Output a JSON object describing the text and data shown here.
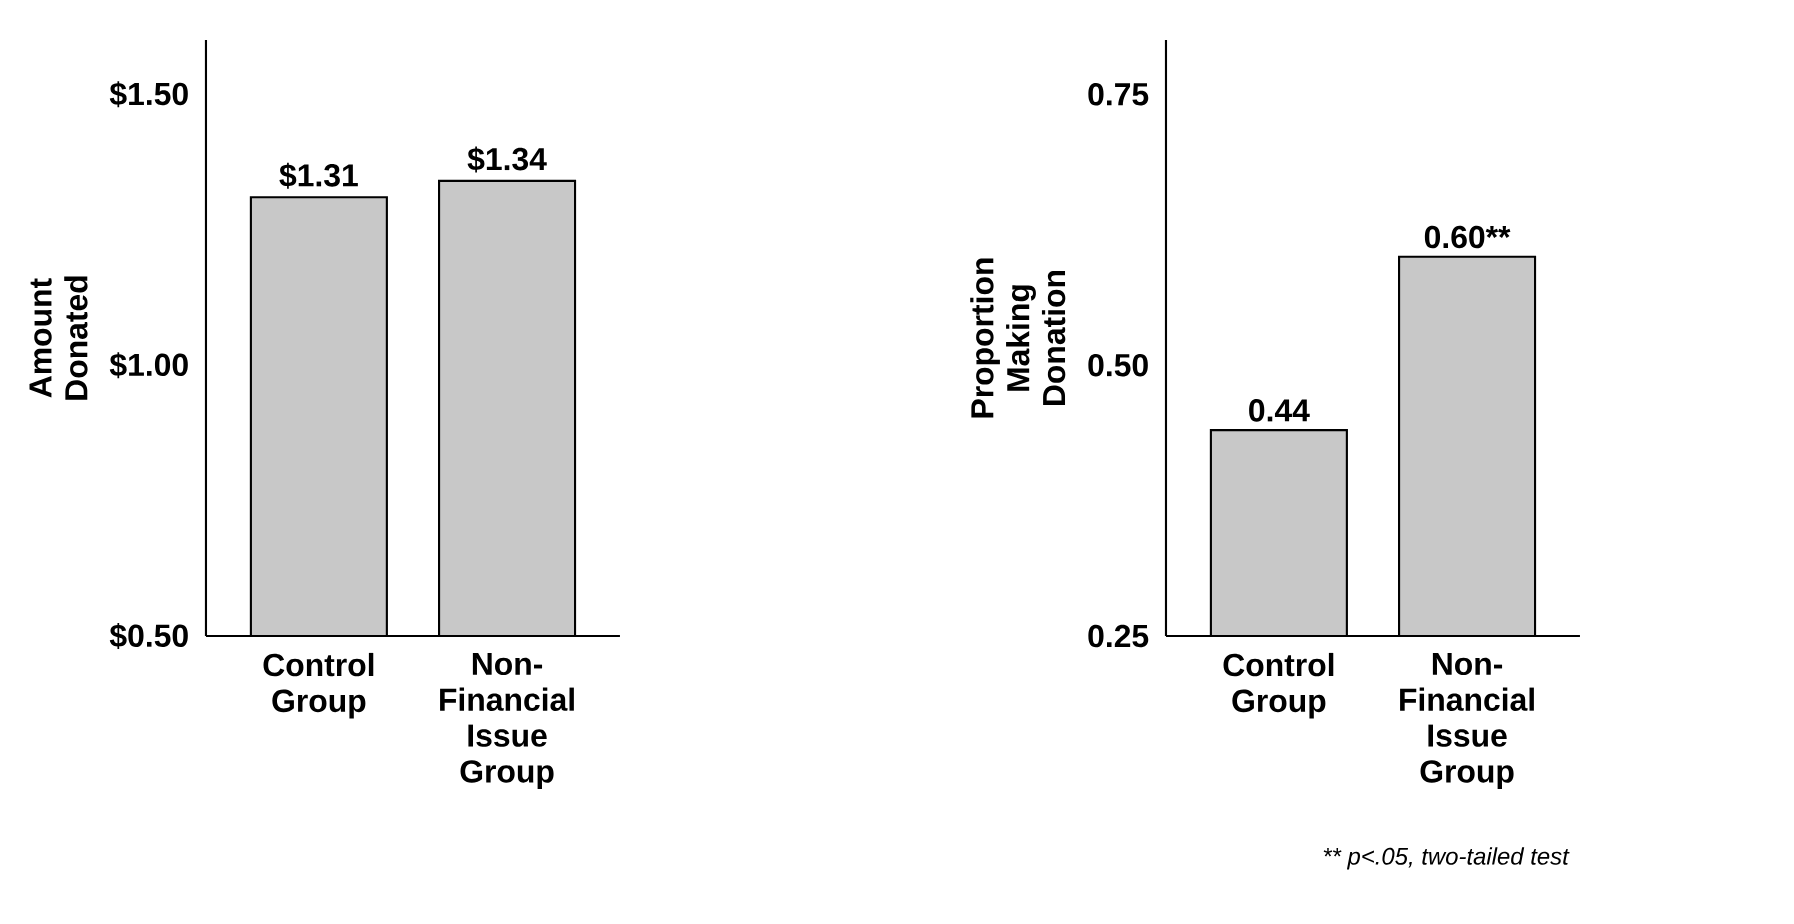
{
  "chart_data": [
    {
      "type": "bar",
      "categories": [
        "Control Group",
        "Non-Financial Issue Group"
      ],
      "values": [
        1.31,
        1.34
      ],
      "color": "#c8c8c8",
      "ylabel": "Amount Donated",
      "ylim": [
        0.5,
        1.6
      ],
      "yticks": [
        {
          "value": 0.5,
          "label": "$0.50"
        },
        {
          "value": 1.0,
          "label": "$1.00"
        },
        {
          "value": 1.5,
          "label": "$1.50"
        }
      ],
      "value_labels": [
        "$1.31",
        "$1.34"
      ]
    },
    {
      "type": "bar",
      "categories": [
        "Control Group",
        "Non-Financial Issue Group"
      ],
      "values": [
        0.44,
        0.6
      ],
      "color": "#c8c8c8",
      "ylabel": "Proportion Making Donation",
      "ylim": [
        0.25,
        0.8
      ],
      "yticks": [
        {
          "value": 0.25,
          "label": "0.25"
        },
        {
          "value": 0.5,
          "label": "0.50"
        },
        {
          "value": 0.75,
          "label": "0.75"
        }
      ],
      "value_labels": [
        "0.44",
        "0.60**"
      ],
      "annotations": [
        "** p<.05, two-tailed test"
      ]
    }
  ]
}
